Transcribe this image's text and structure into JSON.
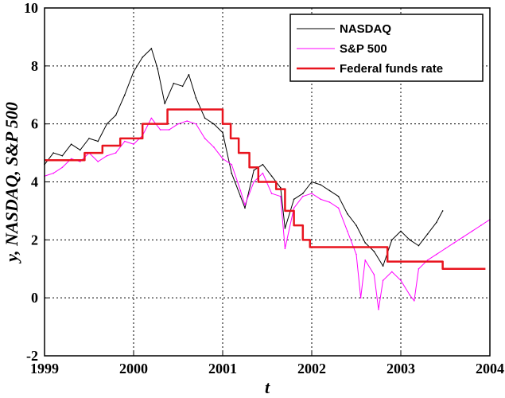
{
  "chart_data": {
    "type": "line",
    "xlabel": "t",
    "ylabel": "y, NASDAQ, S&P 500",
    "xlim": [
      1999,
      2004
    ],
    "ylim": [
      -2,
      10
    ],
    "xticks": [
      1999,
      2000,
      2001,
      2002,
      2003,
      2004
    ],
    "yticks": [
      -2,
      0,
      2,
      4,
      6,
      8,
      10
    ],
    "grid": true,
    "legend_position": "top-right",
    "series": [
      {
        "name": "NASDAQ",
        "color": "#000000",
        "style": "thin",
        "x": [
          1999.0,
          1999.1,
          1999.2,
          1999.3,
          1999.4,
          1999.5,
          1999.6,
          1999.7,
          1999.8,
          1999.9,
          2000.0,
          2000.1,
          2000.2,
          2000.27,
          2000.35,
          2000.45,
          2000.55,
          2000.62,
          2000.7,
          2000.8,
          2000.9,
          2001.0,
          2001.1,
          2001.2,
          2001.25,
          2001.35,
          2001.45,
          2001.55,
          2001.65,
          2001.7,
          2001.8,
          2001.9,
          2002.0,
          2002.1,
          2002.2,
          2002.3,
          2002.4,
          2002.5,
          2002.6,
          2002.7,
          2002.8,
          2002.9,
          2003.0,
          2003.1,
          2003.2,
          2003.3,
          2003.4,
          2003.47
        ],
        "y": [
          4.6,
          5.0,
          4.9,
          5.3,
          5.1,
          5.5,
          5.4,
          6.0,
          6.3,
          7.0,
          7.8,
          8.3,
          8.6,
          7.9,
          6.7,
          7.4,
          7.3,
          7.7,
          6.9,
          6.2,
          6.0,
          5.7,
          4.3,
          3.5,
          3.1,
          4.4,
          4.6,
          4.2,
          3.8,
          2.4,
          3.4,
          3.6,
          4.0,
          3.9,
          3.7,
          3.5,
          2.9,
          2.5,
          1.9,
          1.6,
          1.1,
          2.0,
          2.3,
          2.0,
          1.8,
          2.2,
          2.6,
          3.0
        ]
      },
      {
        "name": "S&P 500",
        "color": "#ff00ff",
        "style": "thin",
        "x": [
          1999.0,
          1999.1,
          1999.2,
          1999.3,
          1999.4,
          1999.5,
          1999.6,
          1999.7,
          1999.8,
          1999.9,
          2000.0,
          2000.1,
          2000.2,
          2000.3,
          2000.4,
          2000.5,
          2000.6,
          2000.7,
          2000.8,
          2000.9,
          2001.0,
          2001.1,
          2001.2,
          2001.25,
          2001.35,
          2001.45,
          2001.55,
          2001.65,
          2001.7,
          2001.8,
          2001.9,
          2002.0,
          2002.1,
          2002.2,
          2002.3,
          2002.4,
          2002.5,
          2002.55,
          2002.6,
          2002.7,
          2002.75,
          2002.8,
          2002.9,
          2003.0,
          2003.1,
          2003.15,
          2003.2,
          2003.3,
          2003.4,
          2003.5,
          2003.6,
          2003.7,
          2003.8,
          2003.9,
          2004.0
        ],
        "y": [
          4.2,
          4.3,
          4.5,
          4.8,
          4.7,
          5.0,
          4.7,
          4.9,
          5.0,
          5.4,
          5.3,
          5.6,
          6.2,
          5.8,
          5.8,
          6.0,
          6.1,
          6.0,
          5.5,
          5.2,
          4.8,
          4.6,
          3.7,
          3.2,
          4.0,
          4.3,
          3.6,
          3.5,
          1.7,
          3.1,
          3.5,
          3.6,
          3.4,
          3.3,
          3.1,
          2.3,
          1.5,
          0.0,
          1.3,
          0.8,
          -0.4,
          0.6,
          0.9,
          0.6,
          0.1,
          -0.1,
          1.0,
          1.3,
          1.5,
          1.7,
          1.9,
          2.1,
          2.3,
          2.5,
          2.7
        ]
      },
      {
        "name": "Federal funds rate",
        "color": "#e8141e",
        "style": "step",
        "x": [
          1999.0,
          1999.45,
          1999.65,
          1999.85,
          2000.1,
          2000.38,
          2001.0,
          2001.09,
          2001.18,
          2001.3,
          2001.4,
          2001.6,
          2001.7,
          2001.8,
          2001.9,
          2001.98,
          2002.85,
          2003.47,
          2003.95
        ],
        "y": [
          4.75,
          5.0,
          5.25,
          5.5,
          6.0,
          6.5,
          6.0,
          5.5,
          5.0,
          4.5,
          4.0,
          3.75,
          3.0,
          2.5,
          2.0,
          1.75,
          1.25,
          1.0,
          1.0
        ]
      }
    ]
  }
}
